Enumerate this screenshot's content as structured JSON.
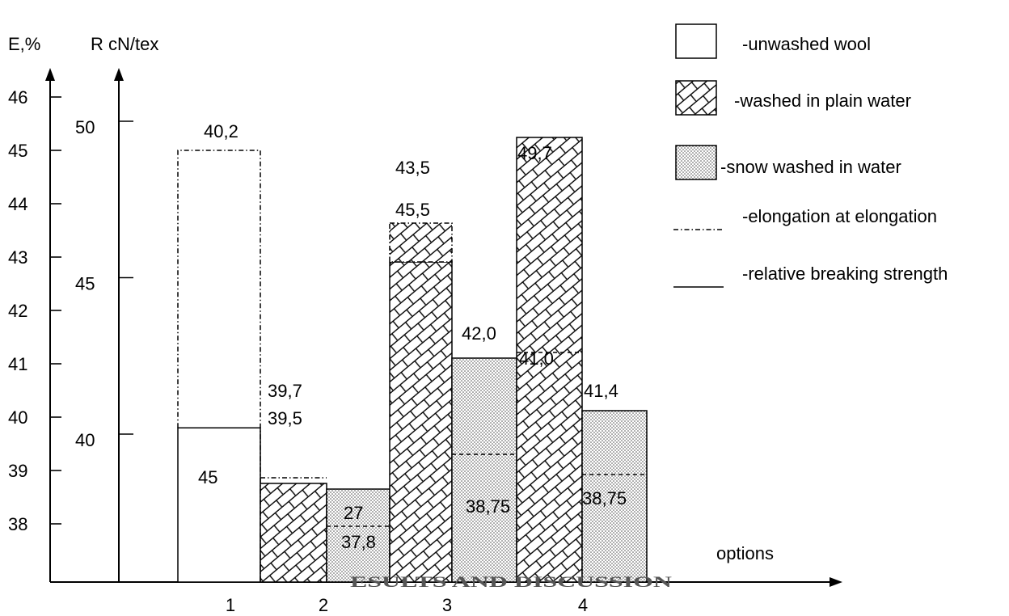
{
  "chart_data": {
    "type": "bar",
    "title": "",
    "xlabel": "options",
    "ylabel_left": "E,%",
    "ylabel_right": "R cN/tex",
    "e_axis": {
      "ticks": [
        "46",
        "45",
        "44",
        "43",
        "42",
        "41",
        "40",
        "39",
        "38"
      ],
      "values": [
        46,
        45,
        44,
        43,
        42,
        41,
        40,
        39,
        38
      ]
    },
    "r_axis": {
      "ticks": [
        "50",
        "45",
        "40"
      ],
      "values": [
        50,
        45,
        40
      ]
    },
    "categories": [
      "1",
      "2",
      "3",
      "4"
    ],
    "legend": [
      {
        "label": "-unwashed wool",
        "swatch": "plain"
      },
      {
        "label": "-washed in plain water",
        "swatch": "brick"
      },
      {
        "label": "-snow washed in water",
        "swatch": "dots"
      },
      {
        "label": "-elongation at elongation",
        "swatch": "dashdot"
      },
      {
        "label": "-relative breaking strength",
        "swatch": "solid"
      }
    ],
    "legend_position": "top-right",
    "bars": [
      {
        "option": "1",
        "fill": "plain",
        "e_percent": 45,
        "r_cn_tex": 40.2,
        "labels": [
          "45",
          "40,2"
        ]
      },
      {
        "option": "2",
        "fill": "brick",
        "e_percent": 39.7,
        "r_cn_tex": 39.5,
        "labels": [
          "39,7",
          "39,5"
        ]
      },
      {
        "option": "2",
        "fill": "dots",
        "e_percent": 37.8,
        "r_cn_tex": 27,
        "labels": [
          "27",
          "37,8"
        ]
      },
      {
        "option": "3",
        "fill": "brick",
        "e_percent": 43.5,
        "r_cn_tex": 45.5,
        "labels": [
          "43,5",
          "45,5"
        ]
      },
      {
        "option": "3",
        "fill": "dots",
        "e_percent": 38.75,
        "r_cn_tex": 42.0,
        "labels": [
          "42,0",
          "38,75"
        ]
      },
      {
        "option": "4",
        "fill": "brick",
        "e_percent": 41.0,
        "r_cn_tex": 49.7,
        "labels": [
          "49,7",
          "41,0"
        ]
      },
      {
        "option": "4",
        "fill": "dots",
        "e_percent": 38.75,
        "r_cn_tex": 41.4,
        "labels": [
          "41,4",
          "38,75"
        ]
      }
    ],
    "overlay_text": "ESULTS AND DISCUSSION"
  }
}
